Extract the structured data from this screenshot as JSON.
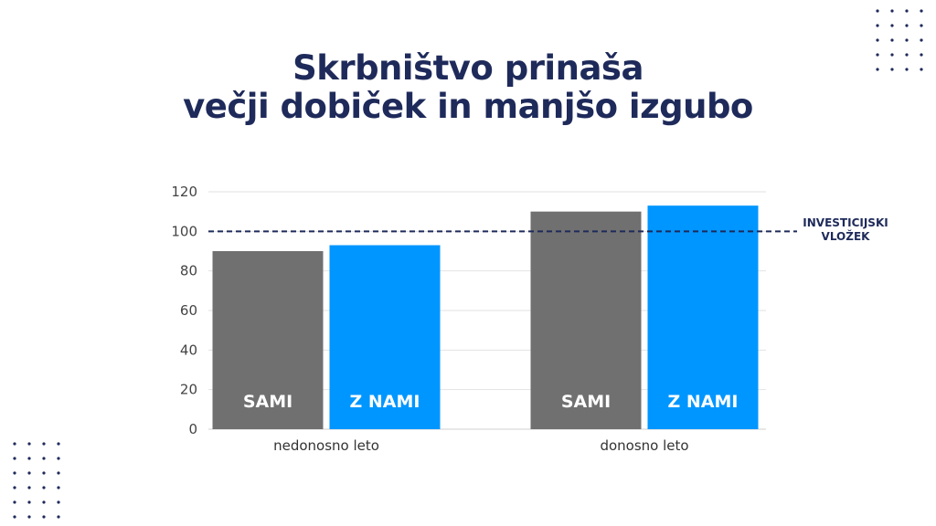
{
  "title": {
    "line1": "Skrbništvo prinaša",
    "line2": "večji dobiček in manjšo izgubo"
  },
  "chart_data": {
    "type": "bar",
    "categories": [
      "nedonosno leto",
      "donosno leto"
    ],
    "series": [
      {
        "values": [
          90,
          110
        ],
        "bar_label": "SAMI",
        "color": "#707070"
      },
      {
        "values": [
          93,
          113
        ],
        "bar_label": "Z NAMI",
        "color": "#0096ff"
      }
    ],
    "ylim": [
      0,
      120
    ],
    "yticks": [
      0,
      20,
      40,
      60,
      80,
      100,
      120
    ],
    "grid": true,
    "reference_line": {
      "value": 100,
      "label_line1": "INVESTICIJSKI",
      "label_line2": "VLOŽEK",
      "color": "#1e2a5a"
    }
  },
  "colors": {
    "title": "#1e2a5a",
    "dots": "#1e2a5a"
  }
}
